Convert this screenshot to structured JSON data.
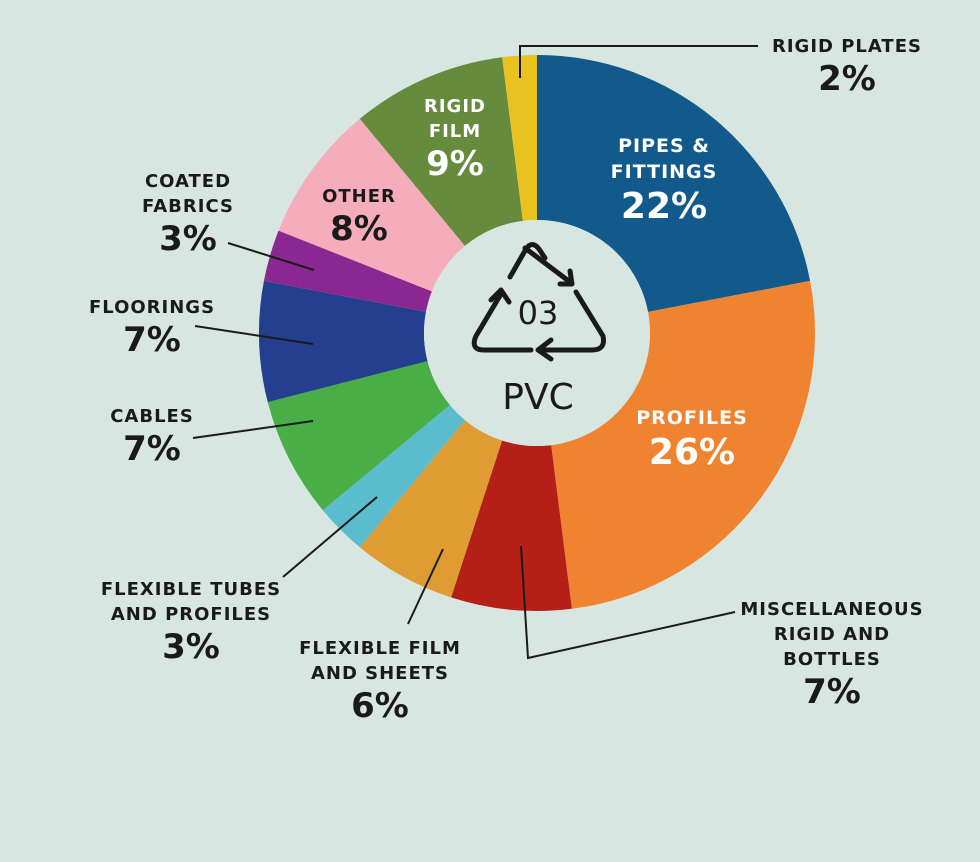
{
  "chart_data": {
    "type": "pie",
    "center": {
      "code": "03",
      "label": "PVC",
      "icon": "recycle-triangle-icon"
    },
    "slices": [
      {
        "id": "pipes-and-fittings",
        "label_lines": [
          "PIPES &",
          "FITTINGS"
        ],
        "value": 22,
        "value_text": "22%",
        "color": "#115a8b"
      },
      {
        "id": "profiles",
        "label_lines": [
          "PROFILES"
        ],
        "value": 26,
        "value_text": "26%",
        "color": "#f0832f"
      },
      {
        "id": "miscellaneous-rigid-and-bottles",
        "label_lines": [
          "MISCELLANEOUS",
          "RIGID AND",
          "BOTTLES"
        ],
        "value": 7,
        "value_text": "7%",
        "color": "#b41f18"
      },
      {
        "id": "flexible-film-and-sheets",
        "label_lines": [
          "FLEXIBLE FILM",
          "AND SHEETS"
        ],
        "value": 6,
        "value_text": "6%",
        "color": "#de9c33"
      },
      {
        "id": "flexible-tubes-and-profiles",
        "label_lines": [
          "FLEXIBLE TUBES",
          "AND PROFILES"
        ],
        "value": 3,
        "value_text": "3%",
        "color": "#5bbccd"
      },
      {
        "id": "cables",
        "label_lines": [
          "CABLES"
        ],
        "value": 7,
        "value_text": "7%",
        "color": "#49ae46"
      },
      {
        "id": "floorings",
        "label_lines": [
          "FLOORINGS"
        ],
        "value": 7,
        "value_text": "7%",
        "color": "#233f8e"
      },
      {
        "id": "coated-fabrics",
        "label_lines": [
          "COATED",
          "FABRICS"
        ],
        "value": 3,
        "value_text": "3%",
        "color": "#8a2790"
      },
      {
        "id": "other",
        "label_lines": [
          "OTHER"
        ],
        "value": 8,
        "value_text": "8%",
        "color": "#f5acbb"
      },
      {
        "id": "rigid-film",
        "label_lines": [
          "RIGID",
          "FILM"
        ],
        "value": 9,
        "value_text": "9%",
        "color": "#678b3d"
      },
      {
        "id": "rigid-plates",
        "label_lines": [
          "RIGID PLATES"
        ],
        "value": 2,
        "value_text": "2%",
        "color": "#e8c21e"
      }
    ]
  }
}
